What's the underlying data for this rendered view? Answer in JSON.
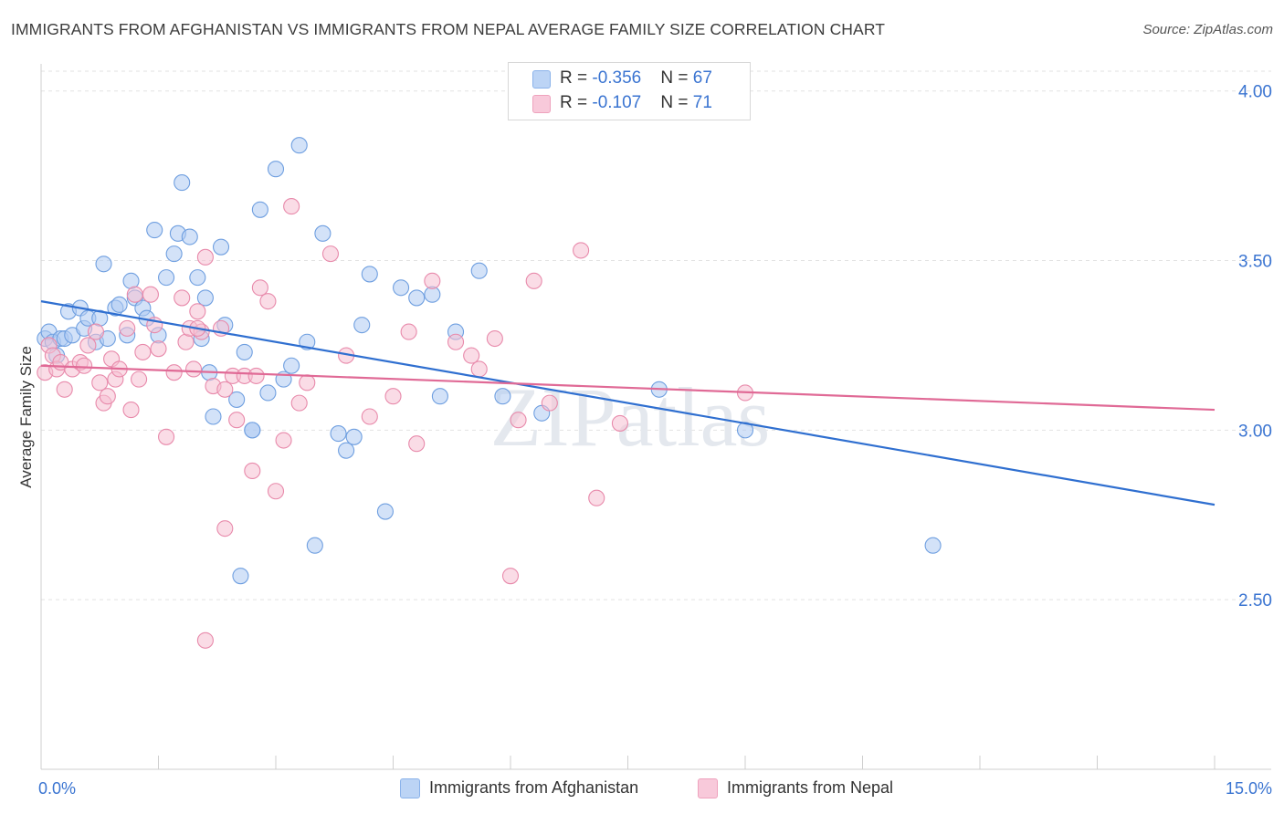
{
  "title": "IMMIGRANTS FROM AFGHANISTAN VS IMMIGRANTS FROM NEPAL AVERAGE FAMILY SIZE CORRELATION CHART",
  "source": "Source: ZipAtlas.com",
  "watermark": "ZIPatlas",
  "colors": {
    "blue_fill": "#aecbf2",
    "blue_stroke": "#6f9fe0",
    "blue_line": "#2f6fd0",
    "pink_fill": "#f6bfd2",
    "pink_stroke": "#e88aab",
    "pink_line": "#e06a96",
    "axis_text": "#3a74d1",
    "grid": "#e2e2e2"
  },
  "legend": {
    "rows": [
      {
        "r_label": "R = ",
        "r_value": "-0.356",
        "n_label": "N = ",
        "n_value": "67"
      },
      {
        "r_label": "R = ",
        "r_value": "-0.107",
        "n_label": "N = ",
        "n_value": "71"
      }
    ]
  },
  "chart_data": {
    "type": "scatter",
    "title": "IMMIGRANTS FROM AFGHANISTAN VS IMMIGRANTS FROM NEPAL AVERAGE FAMILY SIZE CORRELATION CHART",
    "xlabel": "",
    "ylabel": "Average Family Size",
    "xlim": [
      0,
      15
    ],
    "ylim": [
      2.0,
      4.08
    ],
    "x_tick_labels": [
      "0.0%",
      "15.0%"
    ],
    "y_ticks": [
      2.5,
      3.0,
      3.5,
      4.0
    ],
    "y_tick_labels": [
      "2.50",
      "3.00",
      "3.50",
      "4.00"
    ],
    "grid": true,
    "legend_position": "top-center",
    "series": [
      {
        "name": "Immigrants from Afghanistan",
        "color": "blue",
        "trend": {
          "x": [
            0,
            15
          ],
          "y": [
            3.38,
            2.78
          ]
        },
        "points": [
          [
            0.05,
            3.27
          ],
          [
            0.1,
            3.29
          ],
          [
            0.15,
            3.26
          ],
          [
            0.2,
            3.22
          ],
          [
            0.25,
            3.27
          ],
          [
            0.3,
            3.27
          ],
          [
            0.35,
            3.35
          ],
          [
            0.4,
            3.28
          ],
          [
            0.5,
            3.36
          ],
          [
            0.55,
            3.3
          ],
          [
            0.6,
            3.33
          ],
          [
            0.7,
            3.26
          ],
          [
            0.75,
            3.33
          ],
          [
            0.8,
            3.49
          ],
          [
            0.85,
            3.27
          ],
          [
            0.95,
            3.36
          ],
          [
            1.0,
            3.37
          ],
          [
            1.1,
            3.28
          ],
          [
            1.15,
            3.44
          ],
          [
            1.2,
            3.39
          ],
          [
            1.3,
            3.36
          ],
          [
            1.35,
            3.33
          ],
          [
            1.45,
            3.59
          ],
          [
            1.5,
            3.28
          ],
          [
            1.6,
            3.45
          ],
          [
            1.7,
            3.52
          ],
          [
            1.75,
            3.58
          ],
          [
            1.8,
            3.73
          ],
          [
            1.9,
            3.57
          ],
          [
            2.0,
            3.45
          ],
          [
            2.05,
            3.27
          ],
          [
            2.1,
            3.39
          ],
          [
            2.15,
            3.17
          ],
          [
            2.2,
            3.04
          ],
          [
            2.3,
            3.54
          ],
          [
            2.35,
            3.31
          ],
          [
            2.5,
            3.09
          ],
          [
            2.6,
            3.23
          ],
          [
            2.7,
            3.0
          ],
          [
            2.8,
            3.65
          ],
          [
            2.9,
            3.11
          ],
          [
            3.0,
            3.77
          ],
          [
            3.1,
            3.15
          ],
          [
            3.2,
            3.19
          ],
          [
            3.3,
            3.84
          ],
          [
            3.4,
            3.26
          ],
          [
            3.5,
            2.66
          ],
          [
            3.6,
            3.58
          ],
          [
            3.8,
            2.99
          ],
          [
            3.9,
            2.94
          ],
          [
            4.0,
            2.98
          ],
          [
            4.1,
            3.31
          ],
          [
            4.2,
            3.46
          ],
          [
            4.4,
            2.76
          ],
          [
            4.6,
            3.42
          ],
          [
            4.8,
            3.39
          ],
          [
            5.0,
            3.4
          ],
          [
            5.1,
            3.1
          ],
          [
            5.3,
            3.29
          ],
          [
            5.6,
            3.47
          ],
          [
            5.9,
            3.1
          ],
          [
            6.4,
            3.05
          ],
          [
            7.9,
            3.12
          ],
          [
            2.55,
            2.57
          ],
          [
            2.7,
            3.0
          ],
          [
            9.0,
            3.0
          ],
          [
            11.4,
            2.66
          ]
        ]
      },
      {
        "name": "Immigrants from Nepal",
        "color": "pink",
        "trend": {
          "x": [
            0,
            15
          ],
          "y": [
            3.19,
            3.06
          ]
        },
        "points": [
          [
            0.05,
            3.17
          ],
          [
            0.1,
            3.25
          ],
          [
            0.15,
            3.22
          ],
          [
            0.2,
            3.18
          ],
          [
            0.25,
            3.2
          ],
          [
            0.3,
            3.12
          ],
          [
            0.4,
            3.18
          ],
          [
            0.5,
            3.2
          ],
          [
            0.55,
            3.19
          ],
          [
            0.6,
            3.25
          ],
          [
            0.7,
            3.29
          ],
          [
            0.75,
            3.14
          ],
          [
            0.8,
            3.08
          ],
          [
            0.85,
            3.1
          ],
          [
            0.9,
            3.21
          ],
          [
            0.95,
            3.15
          ],
          [
            1.0,
            3.18
          ],
          [
            1.1,
            3.3
          ],
          [
            1.15,
            3.06
          ],
          [
            1.2,
            3.4
          ],
          [
            1.25,
            3.15
          ],
          [
            1.3,
            3.23
          ],
          [
            1.4,
            3.4
          ],
          [
            1.5,
            3.24
          ],
          [
            1.6,
            2.98
          ],
          [
            1.7,
            3.17
          ],
          [
            1.8,
            3.39
          ],
          [
            1.85,
            3.26
          ],
          [
            1.9,
            3.3
          ],
          [
            2.0,
            3.35
          ],
          [
            2.05,
            3.29
          ],
          [
            2.1,
            3.51
          ],
          [
            2.2,
            3.13
          ],
          [
            2.3,
            3.3
          ],
          [
            2.35,
            3.12
          ],
          [
            2.45,
            3.16
          ],
          [
            2.5,
            3.03
          ],
          [
            2.6,
            3.16
          ],
          [
            2.7,
            2.88
          ],
          [
            2.8,
            3.42
          ],
          [
            2.9,
            3.38
          ],
          [
            3.0,
            2.82
          ],
          [
            3.1,
            2.97
          ],
          [
            3.2,
            3.66
          ],
          [
            3.3,
            3.08
          ],
          [
            3.4,
            3.14
          ],
          [
            3.7,
            3.52
          ],
          [
            3.9,
            3.22
          ],
          [
            4.2,
            3.04
          ],
          [
            4.5,
            3.1
          ],
          [
            4.7,
            3.29
          ],
          [
            4.8,
            2.96
          ],
          [
            5.0,
            3.44
          ],
          [
            5.3,
            3.26
          ],
          [
            5.5,
            3.22
          ],
          [
            5.6,
            3.18
          ],
          [
            5.8,
            3.27
          ],
          [
            6.0,
            2.57
          ],
          [
            6.1,
            3.03
          ],
          [
            6.3,
            3.44
          ],
          [
            6.5,
            3.08
          ],
          [
            6.9,
            3.53
          ],
          [
            7.1,
            2.8
          ],
          [
            7.4,
            3.02
          ],
          [
            9.0,
            3.11
          ],
          [
            2.1,
            2.38
          ],
          [
            2.35,
            2.71
          ],
          [
            2.0,
            3.3
          ],
          [
            1.45,
            3.31
          ],
          [
            1.95,
            3.18
          ],
          [
            2.75,
            3.16
          ]
        ]
      }
    ]
  },
  "x_axis": {
    "min_label": "0.0%",
    "max_label": "15.0%"
  },
  "bottom_legend": [
    {
      "label": "Immigrants from Afghanistan"
    },
    {
      "label": "Immigrants from Nepal"
    }
  ]
}
